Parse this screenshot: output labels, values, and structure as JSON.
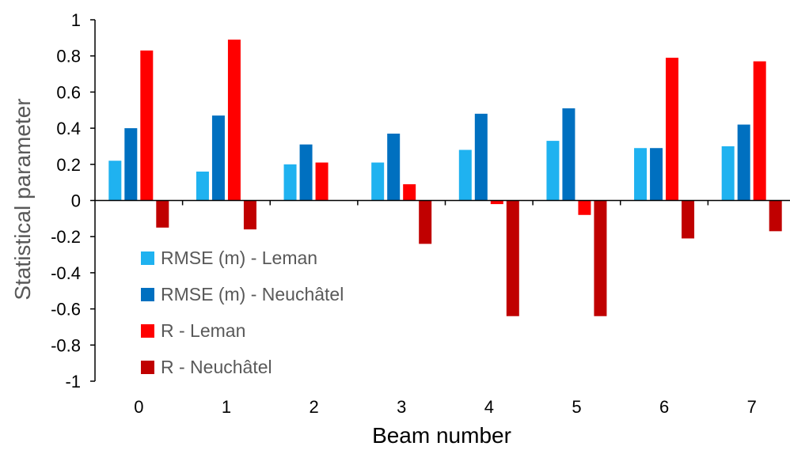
{
  "chart_data": {
    "type": "bar",
    "xlabel": "Beam number",
    "ylabel": "Statistical parameter",
    "ylim": [
      -1,
      1
    ],
    "yticks": [
      1,
      0.8,
      0.6,
      0.4,
      0.2,
      0,
      -0.2,
      -0.4,
      -0.6,
      -0.8,
      -1
    ],
    "ytick_labels": [
      "1",
      "0.8",
      "0.6",
      "0.4",
      "0.2",
      "0",
      "-0.2",
      "-0.4",
      "-0.6",
      "-0.8",
      "-1"
    ],
    "categories": [
      "0",
      "1",
      "2",
      "3",
      "4",
      "5",
      "6",
      "7"
    ],
    "grid": false,
    "legend_position": "left, below zero line",
    "series": [
      {
        "name": "RMSE (m) - Leman",
        "color": "#1fb2f0",
        "values": [
          0.22,
          0.16,
          0.2,
          0.21,
          0.28,
          0.33,
          0.29,
          0.3
        ]
      },
      {
        "name": "RMSE (m) - Neuchâtel",
        "color": "#0070c0",
        "values": [
          0.4,
          0.47,
          0.31,
          0.37,
          0.48,
          0.51,
          0.29,
          0.42
        ]
      },
      {
        "name": "R - Leman",
        "color": "#ff0000",
        "values": [
          0.83,
          0.89,
          0.21,
          0.09,
          -0.02,
          -0.08,
          0.79,
          0.77
        ]
      },
      {
        "name": "R - Neuchâtel",
        "color": "#c00000",
        "values": [
          -0.15,
          -0.16,
          0,
          -0.24,
          -0.64,
          -0.64,
          -0.21,
          -0.17
        ]
      }
    ]
  }
}
